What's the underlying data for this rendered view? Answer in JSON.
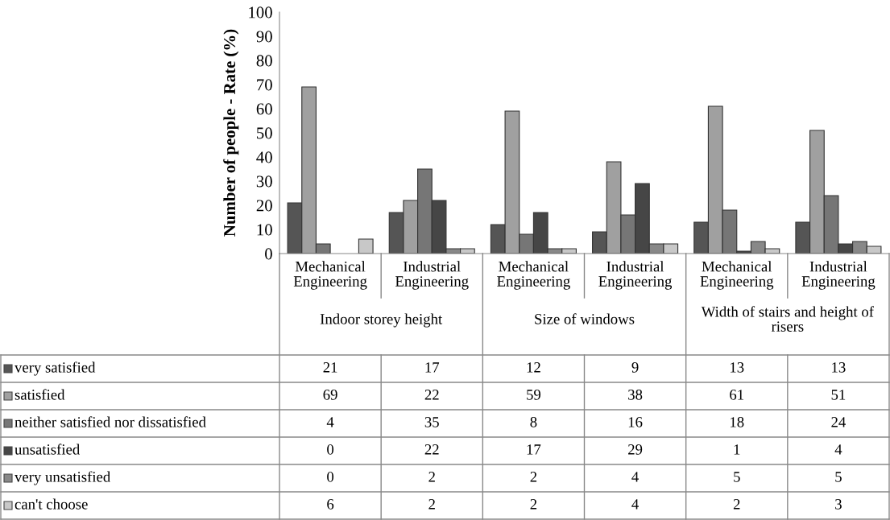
{
  "chart_data": {
    "type": "bar",
    "ylabel": "Number of people - Rate (%)",
    "categories": [
      "Mechanical Engineering",
      "Industrial Engineering",
      "Mechanical Engineering",
      "Industrial Engineering",
      "Mechanical Engineering",
      "Industrial Engineering"
    ],
    "annotations": [
      "Indoor storey height",
      "Size of windows",
      "Width of stairs and height of risers"
    ],
    "series": [
      {
        "name": "very satisfied",
        "color": "#555555",
        "values": [
          21,
          17,
          12,
          9,
          13,
          13
        ]
      },
      {
        "name": "satisfied",
        "color": "#a0a0a0",
        "values": [
          69,
          22,
          59,
          38,
          61,
          51
        ]
      },
      {
        "name": "neither satisfied nor dissatisfied",
        "color": "#767676",
        "values": [
          4,
          35,
          8,
          16,
          18,
          24
        ]
      },
      {
        "name": "unsatisfied",
        "color": "#464646",
        "values": [
          0,
          22,
          17,
          29,
          1,
          4
        ]
      },
      {
        "name": "very unsatisfied",
        "color": "#888888",
        "values": [
          0,
          2,
          2,
          4,
          5,
          5
        ]
      },
      {
        "name": "can't choose",
        "color": "#c8c8c8",
        "values": [
          6,
          2,
          2,
          4,
          2,
          3
        ]
      }
    ],
    "ylim": [
      0,
      100
    ],
    "yticks": [
      0,
      10,
      20,
      30,
      40,
      50,
      60,
      70,
      80,
      90,
      100
    ],
    "grid": false,
    "legend": "left",
    "data_labels": true
  }
}
